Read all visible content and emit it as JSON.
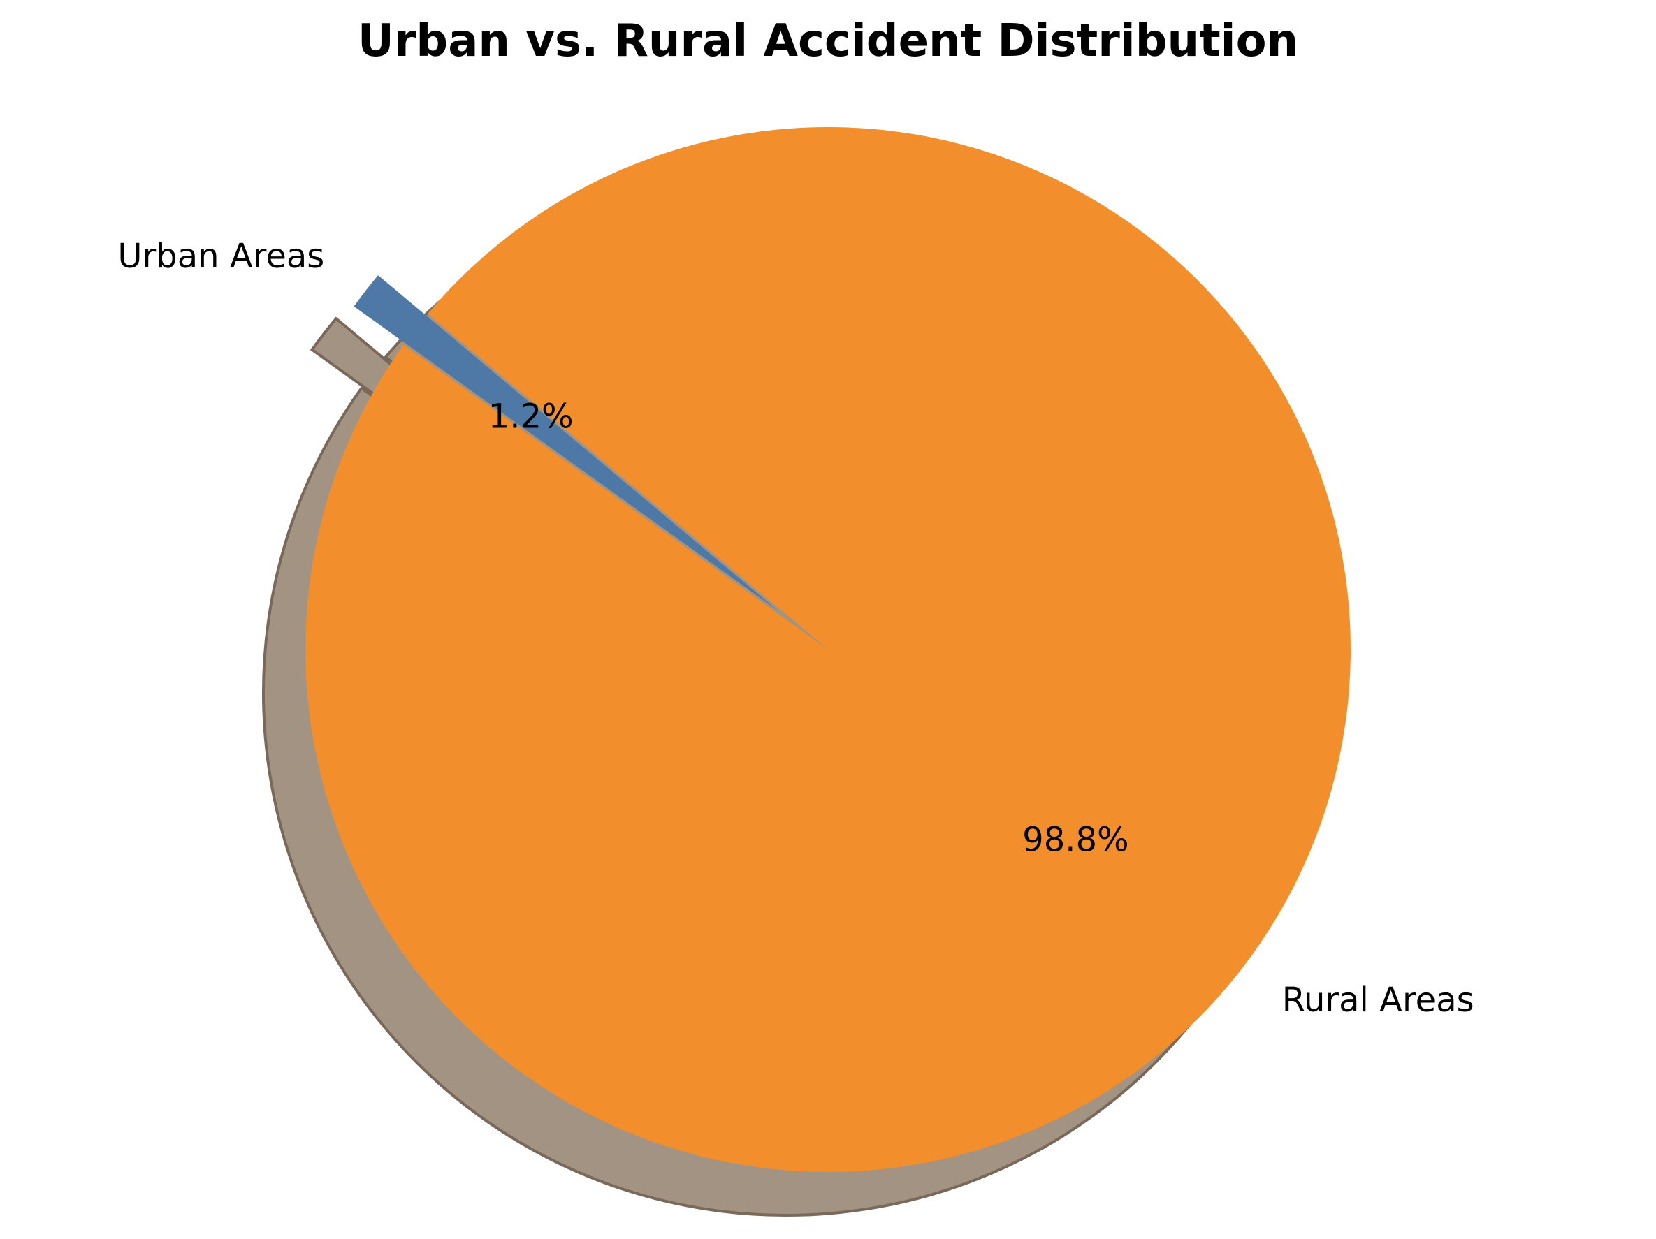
{
  "chart_data": {
    "type": "pie",
    "title": "Urban vs. Rural Accident Distribution",
    "slices": [
      {
        "label": "Urban Areas",
        "percent": 1.2,
        "pct_label": "1.2%",
        "color": "#4e78a6",
        "exploded": true
      },
      {
        "label": "Rural Areas",
        "percent": 98.8,
        "pct_label": "98.8%",
        "color": "#f28e2c",
        "exploded": false
      }
    ],
    "shadow": true,
    "shadow_color": "#a39383"
  }
}
